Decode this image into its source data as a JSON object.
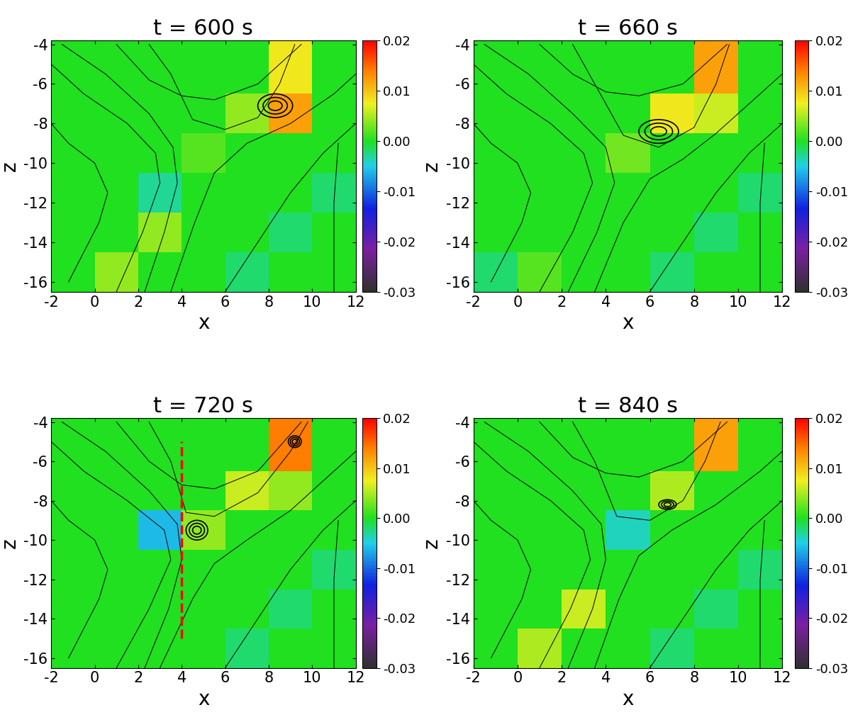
{
  "chart_data": [
    {
      "type": "heatmap",
      "title": "t = 600 s",
      "x_label": "x",
      "y_label": "z",
      "xlim": [
        -2,
        12
      ],
      "ylim": [
        -16.5,
        -3.8
      ],
      "xticks": [
        -2,
        0,
        2,
        4,
        6,
        8,
        10,
        12
      ],
      "yticks": [
        -16,
        -14,
        -12,
        -10,
        -8,
        -6,
        -4
      ],
      "x_edges": [
        -2,
        0,
        2,
        4,
        6,
        8,
        10,
        12
      ],
      "z_edges": [
        -16.5,
        -14.5,
        -12.5,
        -10.5,
        -8.5,
        -6.5,
        -3.8
      ],
      "cells": [
        [
          0,
          0.004,
          0,
          0,
          -0.002,
          0,
          0
        ],
        [
          0,
          0,
          0.004,
          0,
          0,
          -0.002,
          0
        ],
        [
          0,
          0,
          -0.003,
          0,
          0,
          0,
          -0.002
        ],
        [
          0,
          0,
          0,
          0.002,
          0,
          0,
          0
        ],
        [
          0,
          0,
          0,
          0,
          0.004,
          0.012,
          0
        ],
        [
          0,
          0,
          0,
          0,
          0,
          0.008,
          0
        ]
      ],
      "colorbar": {
        "range": [
          -0.03,
          0.02
        ],
        "ticks": [
          -0.03,
          -0.02,
          -0.01,
          {
            "value": 0,
            "label": "0.00"
          },
          0.01,
          0.02
        ]
      },
      "field_lines": [
        {
          "x": [
            -2,
            -0.5,
            1.5,
            2.8,
            3.0,
            2.2,
            1.0
          ],
          "z": [
            -5,
            -6.5,
            -8,
            -9.5,
            -11,
            -13.5,
            -16.5
          ]
        },
        {
          "x": [
            -1.5,
            0.5,
            2.5,
            3.6,
            3.8,
            3.2,
            2.3
          ],
          "z": [
            -4,
            -5.5,
            -7.5,
            -9.2,
            -11,
            -13.5,
            -16.5
          ]
        },
        {
          "x": [
            -2,
            -1.2,
            0,
            0.6,
            0.2,
            -1.2
          ],
          "z": [
            -8,
            -9,
            -10,
            -11.5,
            -13,
            -16
          ]
        },
        {
          "x": [
            1,
            2.5,
            4,
            5.5,
            7.5,
            9.5
          ],
          "z": [
            -4,
            -5.8,
            -6.6,
            -6.8,
            -6,
            -4
          ]
        },
        {
          "x": [
            2.5,
            3.5,
            4.5,
            6,
            7.5,
            8.5,
            9.2
          ],
          "z": [
            -4,
            -5.5,
            -7.8,
            -8.3,
            -7.7,
            -6,
            -4
          ]
        },
        {
          "x": [
            3.5,
            4.6,
            5.5,
            7,
            9,
            11,
            12
          ],
          "z": [
            -16.5,
            -13,
            -10.5,
            -9,
            -8,
            -6.5,
            -5.5
          ]
        },
        {
          "x": [
            6,
            7.5,
            9,
            10.5,
            12
          ],
          "z": [
            -16.5,
            -14,
            -11.5,
            -9.5,
            -8
          ]
        },
        {
          "x": [
            11,
            11,
            11.2
          ],
          "z": [
            -16.5,
            -12,
            -9
          ]
        }
      ],
      "plasmoids": [
        {
          "x": 8.3,
          "z": -7.1,
          "rx": 0.8,
          "rz": 0.6
        }
      ]
    },
    {
      "type": "heatmap",
      "title": "t = 660 s",
      "x_label": "x",
      "y_label": "z",
      "xlim": [
        -2,
        12
      ],
      "ylim": [
        -16.5,
        -3.8
      ],
      "xticks": [
        -2,
        0,
        2,
        4,
        6,
        8,
        10,
        12
      ],
      "yticks": [
        -16,
        -14,
        -12,
        -10,
        -8,
        -6,
        -4
      ],
      "x_edges": [
        -2,
        0,
        2,
        4,
        6,
        8,
        10,
        12
      ],
      "z_edges": [
        -16.5,
        -14.5,
        -12.5,
        -10.5,
        -8.5,
        -6.5,
        -3.8
      ],
      "cells": [
        [
          -0.002,
          0.002,
          0,
          0,
          -0.002,
          0,
          0
        ],
        [
          0,
          0,
          0,
          0,
          0,
          -0.002,
          0
        ],
        [
          0,
          0,
          0,
          0,
          0,
          0,
          -0.002
        ],
        [
          0,
          0,
          0,
          0.003,
          0,
          0,
          0
        ],
        [
          0,
          0,
          0,
          0,
          0.008,
          0.006,
          0
        ],
        [
          0,
          0,
          0,
          0,
          0,
          0.012,
          0
        ]
      ],
      "colorbar": {
        "range": [
          -0.03,
          0.02
        ],
        "ticks": [
          -0.03,
          -0.02,
          -0.01,
          {
            "value": 0,
            "label": "0.00"
          },
          0.01,
          0.02
        ]
      },
      "field_lines": [
        {
          "x": [
            -2,
            -0.5,
            1.5,
            3.0,
            3.4,
            2.5,
            1.0
          ],
          "z": [
            -5,
            -6.5,
            -8,
            -9.5,
            -11,
            -13.5,
            -16.5
          ]
        },
        {
          "x": [
            -1.5,
            0.5,
            2.5,
            4.0,
            4.4,
            3.6,
            2.3
          ],
          "z": [
            -4,
            -5.5,
            -7.5,
            -9.2,
            -11,
            -13.5,
            -16.5
          ]
        },
        {
          "x": [
            -2,
            -1.2,
            0,
            0.6,
            0.2,
            -1.2
          ],
          "z": [
            -8,
            -9,
            -10,
            -11.5,
            -13,
            -16
          ]
        },
        {
          "x": [
            1,
            2.5,
            4,
            5.5,
            7.5,
            9.5
          ],
          "z": [
            -4,
            -5.5,
            -6.4,
            -6.6,
            -6,
            -4
          ]
        },
        {
          "x": [
            2.5,
            3.5,
            4.8,
            6.4,
            8,
            9,
            9.6
          ],
          "z": [
            -4,
            -6,
            -8.6,
            -9.2,
            -8.2,
            -6,
            -4
          ]
        },
        {
          "x": [
            3.5,
            4.8,
            6,
            7.5,
            9,
            11,
            12
          ],
          "z": [
            -16.5,
            -13,
            -10.8,
            -9.8,
            -8.5,
            -6.5,
            -5.5
          ]
        },
        {
          "x": [
            6,
            7.5,
            9,
            10.5,
            12
          ],
          "z": [
            -16.5,
            -14,
            -11.5,
            -9.5,
            -8
          ]
        },
        {
          "x": [
            11,
            11,
            11.2
          ],
          "z": [
            -16.5,
            -12,
            -9
          ]
        }
      ],
      "plasmoids": [
        {
          "x": 6.4,
          "z": -8.4,
          "rx": 0.9,
          "rz": 0.6
        }
      ]
    },
    {
      "type": "heatmap",
      "title": "t = 720 s",
      "x_label": "x",
      "y_label": "z",
      "xlim": [
        -2,
        12
      ],
      "ylim": [
        -16.5,
        -3.8
      ],
      "xticks": [
        -2,
        0,
        2,
        4,
        6,
        8,
        10,
        12
      ],
      "yticks": [
        -16,
        -14,
        -12,
        -10,
        -8,
        -6,
        -4
      ],
      "x_edges": [
        -2,
        0,
        2,
        4,
        6,
        8,
        10,
        12
      ],
      "z_edges": [
        -16.5,
        -14.5,
        -12.5,
        -10.5,
        -8.5,
        -6.5,
        -3.8
      ],
      "cells": [
        [
          0,
          0,
          0,
          0,
          -0.002,
          0,
          0
        ],
        [
          0,
          0,
          0,
          0,
          0,
          -0.002,
          0
        ],
        [
          0,
          0,
          0,
          0,
          0,
          0,
          -0.002
        ],
        [
          0,
          0,
          -0.006,
          0.004,
          0,
          0,
          0
        ],
        [
          0,
          0,
          0,
          0,
          0.006,
          0.004,
          0
        ],
        [
          0,
          0,
          0,
          0,
          0,
          0.014,
          0
        ]
      ],
      "colorbar": {
        "range": [
          -0.03,
          0.02
        ],
        "ticks": [
          -0.03,
          -0.02,
          -0.01,
          {
            "value": 0,
            "label": "0.00"
          },
          0.01,
          0.02
        ]
      },
      "field_lines": [
        {
          "x": [
            -2,
            -0.5,
            1.5,
            3.2,
            3.5,
            2.5,
            1.0
          ],
          "z": [
            -5,
            -6.5,
            -8,
            -9.5,
            -11,
            -13.5,
            -16.5
          ]
        },
        {
          "x": [
            -1.5,
            0.5,
            2.5,
            3.8,
            4.0,
            3.4,
            2.3
          ],
          "z": [
            -4,
            -5.5,
            -7.5,
            -9.2,
            -11,
            -13.5,
            -16.5
          ]
        },
        {
          "x": [
            -2,
            -1.2,
            0,
            0.6,
            0.2,
            -1.2
          ],
          "z": [
            -8,
            -9,
            -10,
            -11.5,
            -13,
            -16
          ]
        },
        {
          "x": [
            1,
            2.5,
            4,
            5.5,
            7.5,
            9.5
          ],
          "z": [
            -4,
            -6,
            -7.2,
            -7.4,
            -6.5,
            -4
          ]
        },
        {
          "x": [
            2.5,
            3.5,
            4.2,
            5.5,
            7.5,
            9,
            9.8
          ],
          "z": [
            -4,
            -6,
            -8.6,
            -8.8,
            -7.6,
            -5.5,
            -4
          ]
        },
        {
          "x": [
            3.0,
            4.5,
            5.5,
            7,
            9,
            11,
            12
          ],
          "z": [
            -16.5,
            -13,
            -11.2,
            -10,
            -8.5,
            -6.5,
            -5.5
          ]
        },
        {
          "x": [
            6,
            7.5,
            9,
            10.5,
            12
          ],
          "z": [
            -16.5,
            -14,
            -11.5,
            -9.5,
            -8
          ]
        },
        {
          "x": [
            11,
            11,
            11.2
          ],
          "z": [
            -16.5,
            -12,
            -9
          ]
        }
      ],
      "plasmoids": [
        {
          "x": 4.7,
          "z": -9.5,
          "rx": 0.5,
          "rz": 0.5
        },
        {
          "x": 9.2,
          "z": -5.0,
          "rx": 0.3,
          "rz": 0.3
        }
      ],
      "guide_lines": [
        {
          "x": [
            4,
            4
          ],
          "z": [
            -15,
            -5
          ],
          "color": "red",
          "line_style": "dashed"
        }
      ]
    },
    {
      "type": "heatmap",
      "title": "t = 840 s",
      "x_label": "x",
      "y_label": "z",
      "xlim": [
        -2,
        12
      ],
      "ylim": [
        -16.5,
        -3.8
      ],
      "xticks": [
        -2,
        0,
        2,
        4,
        6,
        8,
        10,
        12
      ],
      "yticks": [
        -16,
        -14,
        -12,
        -10,
        -8,
        -6,
        -4
      ],
      "x_edges": [
        -2,
        0,
        2,
        4,
        6,
        8,
        10,
        12
      ],
      "z_edges": [
        -16.5,
        -14.5,
        -12.5,
        -10.5,
        -8.5,
        -6.5,
        -3.8
      ],
      "cells": [
        [
          0,
          0.005,
          0,
          0,
          -0.002,
          0,
          0
        ],
        [
          0,
          0,
          0.006,
          0,
          0,
          -0.002,
          0
        ],
        [
          0,
          0,
          0,
          0,
          0,
          0,
          -0.002
        ],
        [
          0,
          0,
          0,
          -0.004,
          0,
          0,
          0
        ],
        [
          0,
          0,
          0,
          0,
          0.005,
          0,
          0
        ],
        [
          0,
          0,
          0,
          0,
          0,
          0.012,
          0
        ]
      ],
      "colorbar": {
        "range": [
          -0.03,
          0.02
        ],
        "ticks": [
          -0.03,
          -0.02,
          -0.01,
          {
            "value": 0,
            "label": "0.00"
          },
          0.01,
          0.02
        ]
      },
      "field_lines": [
        {
          "x": [
            -2,
            -0.5,
            1.5,
            3.0,
            3.3,
            2.4,
            1.0
          ],
          "z": [
            -5,
            -6.5,
            -8,
            -9.5,
            -11,
            -13.5,
            -16.5
          ]
        },
        {
          "x": [
            -1.5,
            0.5,
            2.5,
            3.8,
            4.0,
            3.4,
            2.3
          ],
          "z": [
            -4,
            -5.5,
            -7.5,
            -9.2,
            -11,
            -13.5,
            -16.5
          ]
        },
        {
          "x": [
            -2,
            -1.2,
            0,
            0.6,
            0.2,
            -1.2
          ],
          "z": [
            -8,
            -9,
            -10,
            -11.5,
            -13,
            -16
          ]
        },
        {
          "x": [
            1,
            2.5,
            4,
            5.5,
            7.5,
            9.5
          ],
          "z": [
            -4,
            -5.8,
            -6.6,
            -6.8,
            -6,
            -4
          ]
        },
        {
          "x": [
            2.5,
            3.5,
            4.5,
            6,
            7.5,
            8.5,
            9.2
          ],
          "z": [
            -4,
            -6,
            -8.8,
            -9.0,
            -8.0,
            -6,
            -4
          ]
        },
        {
          "x": [
            3.5,
            4.6,
            5.5,
            7,
            9,
            11,
            12
          ],
          "z": [
            -16.5,
            -13,
            -10.8,
            -9.5,
            -8.2,
            -6.5,
            -5.5
          ]
        },
        {
          "x": [
            6,
            7.5,
            9,
            10.5,
            12
          ],
          "z": [
            -16.5,
            -14,
            -11.5,
            -9.5,
            -8
          ]
        },
        {
          "x": [
            11,
            11,
            11.2
          ],
          "z": [
            -16.5,
            -12,
            -9
          ]
        }
      ],
      "plasmoids": [
        {
          "x": 6.8,
          "z": -8.2,
          "rx": 0.4,
          "rz": 0.25
        }
      ]
    }
  ]
}
